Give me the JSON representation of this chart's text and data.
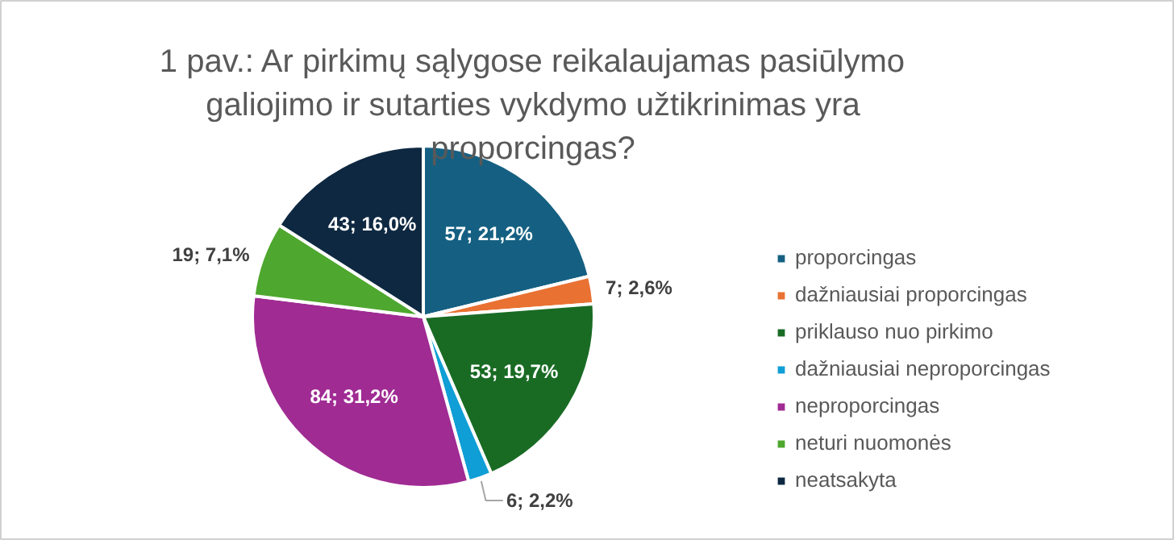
{
  "chart_data": {
    "type": "pie",
    "title": "1 pav.: Ar pirkimų sąlygose reikalaujamas pasiūlymo galiojimo ir sutarties vykdymo užtikrinimas yra proporcingas?",
    "categories": [
      "proporcingas",
      "dažniausiai proporcingas",
      "priklauso nuo pirkimo",
      "dažniausiai neproporcingas",
      "neproporcingas",
      "neturi nuomonės",
      "neatsakyta"
    ],
    "values": [
      57,
      7,
      53,
      6,
      84,
      19,
      43
    ],
    "colors": [
      "#156082",
      "#e97132",
      "#196b24",
      "#0f9ed5",
      "#a02b93",
      "#4ea72e",
      "#0e2841"
    ],
    "value_labels": [
      "57; 21,2%",
      "7; 2,6%",
      "53; 19,7%",
      "6; 2,2%",
      "84; 31,2%",
      "19; 7,1%",
      "43; 16,0%"
    ],
    "legend": "right"
  }
}
